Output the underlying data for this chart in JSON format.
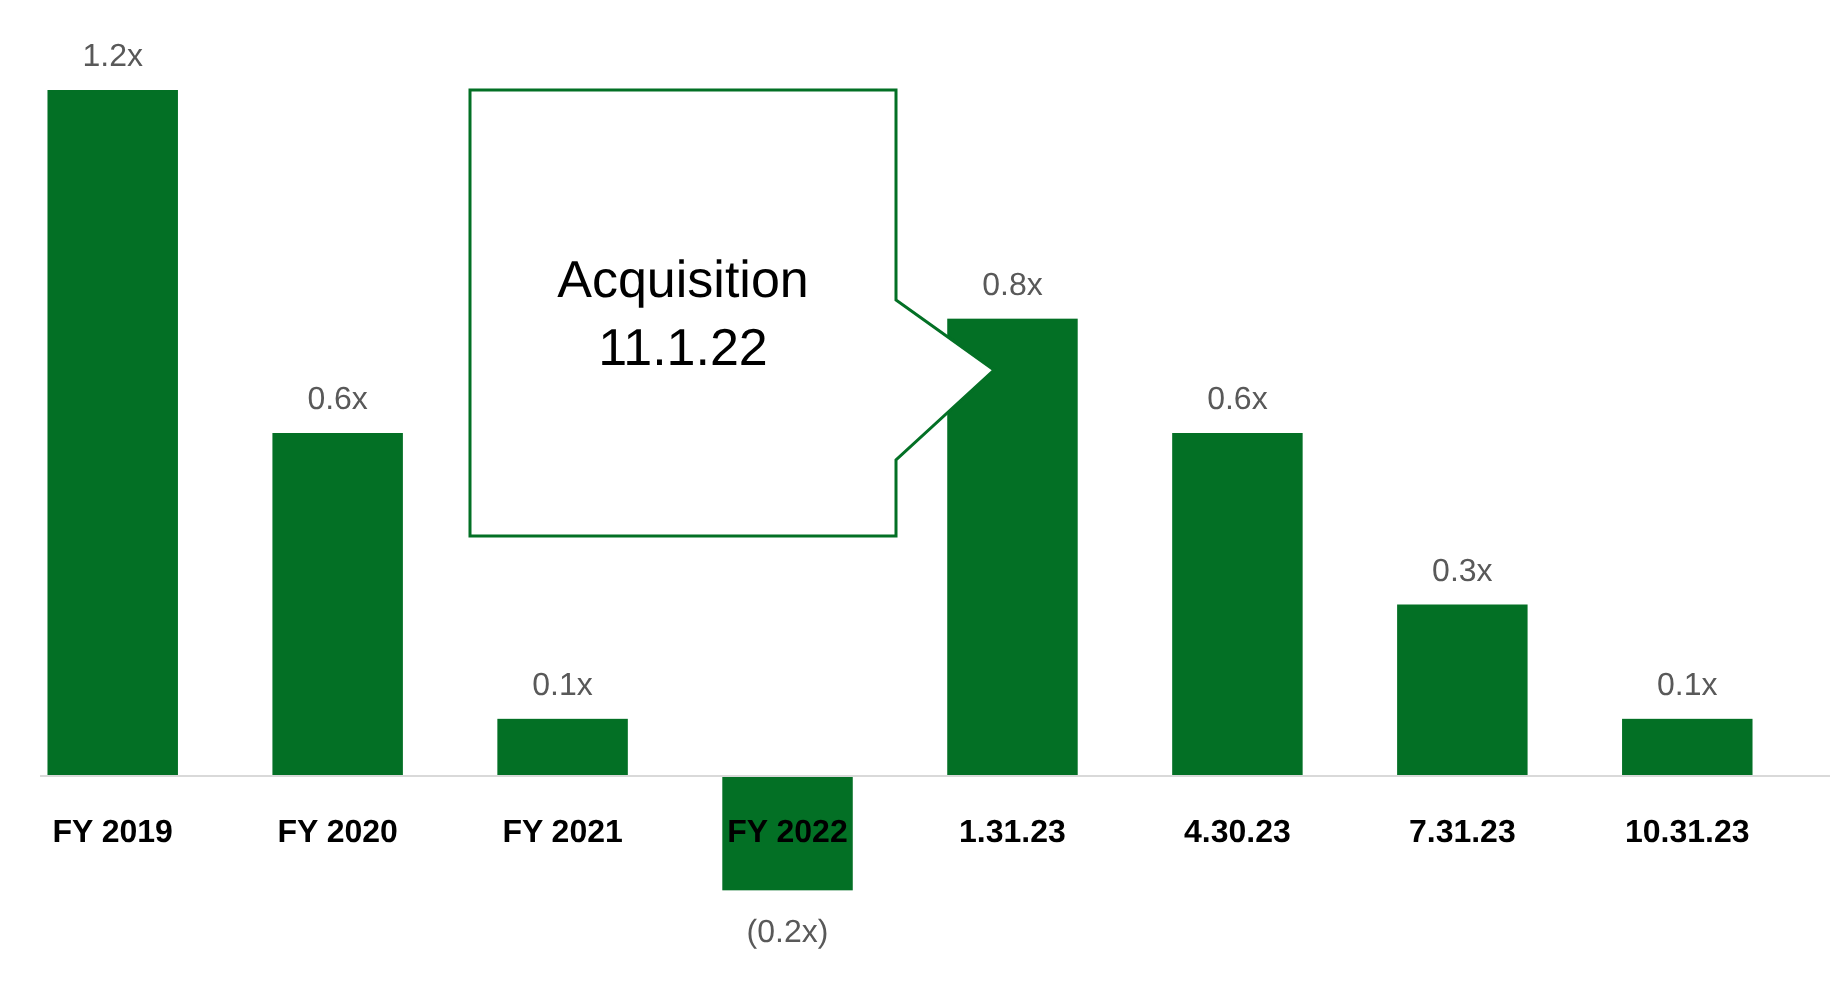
{
  "chart_data": {
    "type": "bar",
    "categories": [
      "FY 2019",
      "FY 2020",
      "FY 2021",
      "FY 2022",
      "1.31.23",
      "4.30.23",
      "7.31.23",
      "10.31.23"
    ],
    "values": [
      1.2,
      0.6,
      0.1,
      -0.2,
      0.8,
      0.6,
      0.3,
      0.1
    ],
    "value_labels": [
      "1.2x",
      "0.6x",
      "0.1x",
      "(0.2x)",
      "0.8x",
      "0.6x",
      "0.3x",
      "0.1x"
    ],
    "color": "#037025",
    "annotations": [
      "Acquisition 11.1.22"
    ]
  }
}
